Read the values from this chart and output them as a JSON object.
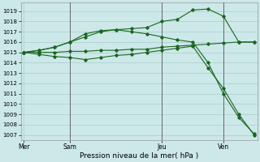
{
  "background_color": "#cce8e8",
  "grid_color": "#aacccc",
  "line_color": "#1a6620",
  "vline_color": "#666666",
  "xlabel": "Pression niveau de la mer( hPa )",
  "ylim": [
    1006.5,
    1019.8
  ],
  "yticks": [
    1007,
    1008,
    1009,
    1010,
    1011,
    1012,
    1013,
    1014,
    1015,
    1016,
    1017,
    1018,
    1019
  ],
  "xtick_labels": [
    "Mer",
    "Sam",
    "Jeu",
    "Ven"
  ],
  "xtick_positions": [
    0,
    3,
    9,
    13
  ],
  "xlim": [
    -0.2,
    15.2
  ],
  "vlines_x": [
    3,
    9,
    13
  ],
  "series": [
    {
      "x": [
        0,
        1,
        2,
        3,
        4,
        5,
        6,
        7,
        8,
        9,
        10,
        11,
        12,
        13,
        14,
        15
      ],
      "y": [
        1015.0,
        1015.0,
        1015.0,
        1015.1,
        1015.1,
        1015.2,
        1015.2,
        1015.3,
        1015.3,
        1015.5,
        1015.6,
        1015.7,
        1015.8,
        1015.9,
        1016.0,
        1016.0
      ]
    },
    {
      "x": [
        0,
        1,
        2,
        3,
        4,
        5,
        6,
        7,
        8,
        9,
        10,
        11,
        12,
        13,
        14,
        15
      ],
      "y": [
        1015.0,
        1015.2,
        1015.5,
        1016.0,
        1016.8,
        1017.1,
        1017.2,
        1017.3,
        1017.4,
        1018.0,
        1018.2,
        1019.1,
        1019.2,
        1018.5,
        1016.0,
        1016.0
      ]
    },
    {
      "x": [
        0,
        1,
        2,
        3,
        4,
        5,
        6,
        7,
        8,
        9,
        10,
        11,
        12,
        13,
        14,
        15
      ],
      "y": [
        1015.0,
        1015.2,
        1015.5,
        1016.0,
        1016.5,
        1017.0,
        1017.2,
        1017.0,
        1016.8,
        1016.5,
        1016.2,
        1016.0,
        1014.0,
        1011.0,
        1008.7,
        1007.1
      ]
    },
    {
      "x": [
        0,
        1,
        2,
        3,
        4,
        5,
        6,
        7,
        8,
        9,
        10,
        11,
        12,
        13,
        14,
        15
      ],
      "y": [
        1015.0,
        1014.8,
        1014.6,
        1014.5,
        1014.3,
        1014.5,
        1014.7,
        1014.8,
        1015.0,
        1015.2,
        1015.4,
        1015.6,
        1013.5,
        1011.5,
        1009.0,
        1007.0
      ]
    }
  ]
}
